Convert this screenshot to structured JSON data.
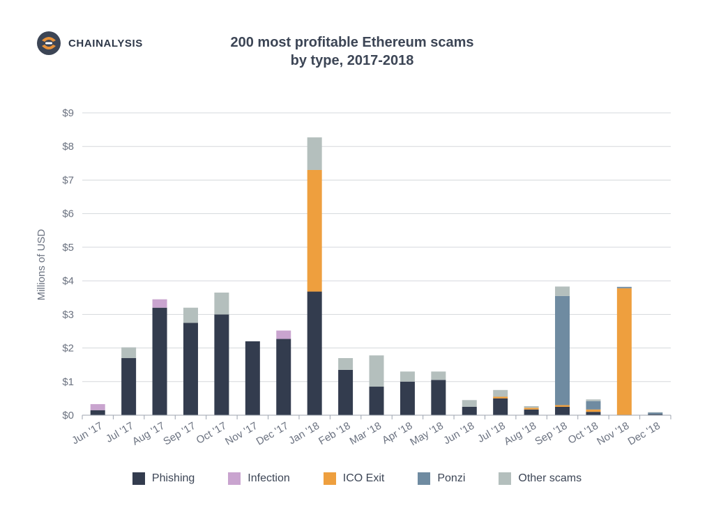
{
  "brand": {
    "name": "CHAINALYSIS",
    "logo_icon": "chainalysis-logo-icon",
    "logo_colors": [
      "#e8923a",
      "#3c4555"
    ]
  },
  "chart_data": {
    "type": "bar",
    "stacked": true,
    "title_lines": [
      "200 most profitable Ethereum scams",
      "by type, 2017-2018"
    ],
    "ylabel": "Millions of USD",
    "xlabel": "",
    "ylim": [
      0,
      9
    ],
    "yticks": [
      0,
      1,
      2,
      3,
      4,
      5,
      6,
      7,
      8,
      9
    ],
    "ytick_labels": [
      "$0",
      "$1",
      "$2",
      "$3",
      "$4",
      "$5",
      "$6",
      "$7",
      "$8",
      "$9"
    ],
    "grid": "horizontal",
    "legend_position": "bottom",
    "categories": [
      "Jun '17",
      "Jul '17",
      "Aug '17",
      "Sep '17",
      "Oct '17",
      "Nov '17",
      "Dec '17",
      "Jan '18",
      "Feb '18",
      "Mar '18",
      "Apr '18",
      "May '18",
      "Jun '18",
      "Jul '18",
      "Aug '18",
      "Sep '18",
      "Oct '18",
      "Nov '18",
      "Dec '18"
    ],
    "series": [
      {
        "name": "Phishing",
        "color": "#333c4e",
        "values": [
          0.15,
          1.7,
          3.2,
          2.75,
          3.0,
          2.2,
          2.27,
          3.68,
          1.35,
          0.85,
          1.0,
          1.05,
          0.25,
          0.5,
          0.17,
          0.25,
          0.1,
          0,
          0.03
        ]
      },
      {
        "name": "Infection",
        "color": "#c9a4cf",
        "values": [
          0.18,
          0,
          0.25,
          0,
          0,
          0,
          0.25,
          0,
          0,
          0,
          0,
          0,
          0,
          0,
          0,
          0,
          0,
          0,
          0
        ]
      },
      {
        "name": "ICO Exit",
        "color": "#ee9f3e",
        "values": [
          0,
          0,
          0,
          0,
          0,
          0,
          0,
          3.62,
          0,
          0,
          0,
          0,
          0,
          0.05,
          0.05,
          0.05,
          0.07,
          3.78,
          0
        ]
      },
      {
        "name": "Ponzi",
        "color": "#6f8ba1",
        "values": [
          0,
          0,
          0,
          0,
          0,
          0,
          0,
          0,
          0,
          0,
          0,
          0,
          0,
          0,
          0,
          3.25,
          0.25,
          0.04,
          0.05
        ]
      },
      {
        "name": "Other scams",
        "color": "#b4bfbd",
        "values": [
          0,
          0.32,
          0,
          0.45,
          0.65,
          0,
          0,
          0.97,
          0.35,
          0.93,
          0.3,
          0.25,
          0.2,
          0.2,
          0.05,
          0.28,
          0.05,
          0,
          0.01
        ]
      }
    ]
  }
}
